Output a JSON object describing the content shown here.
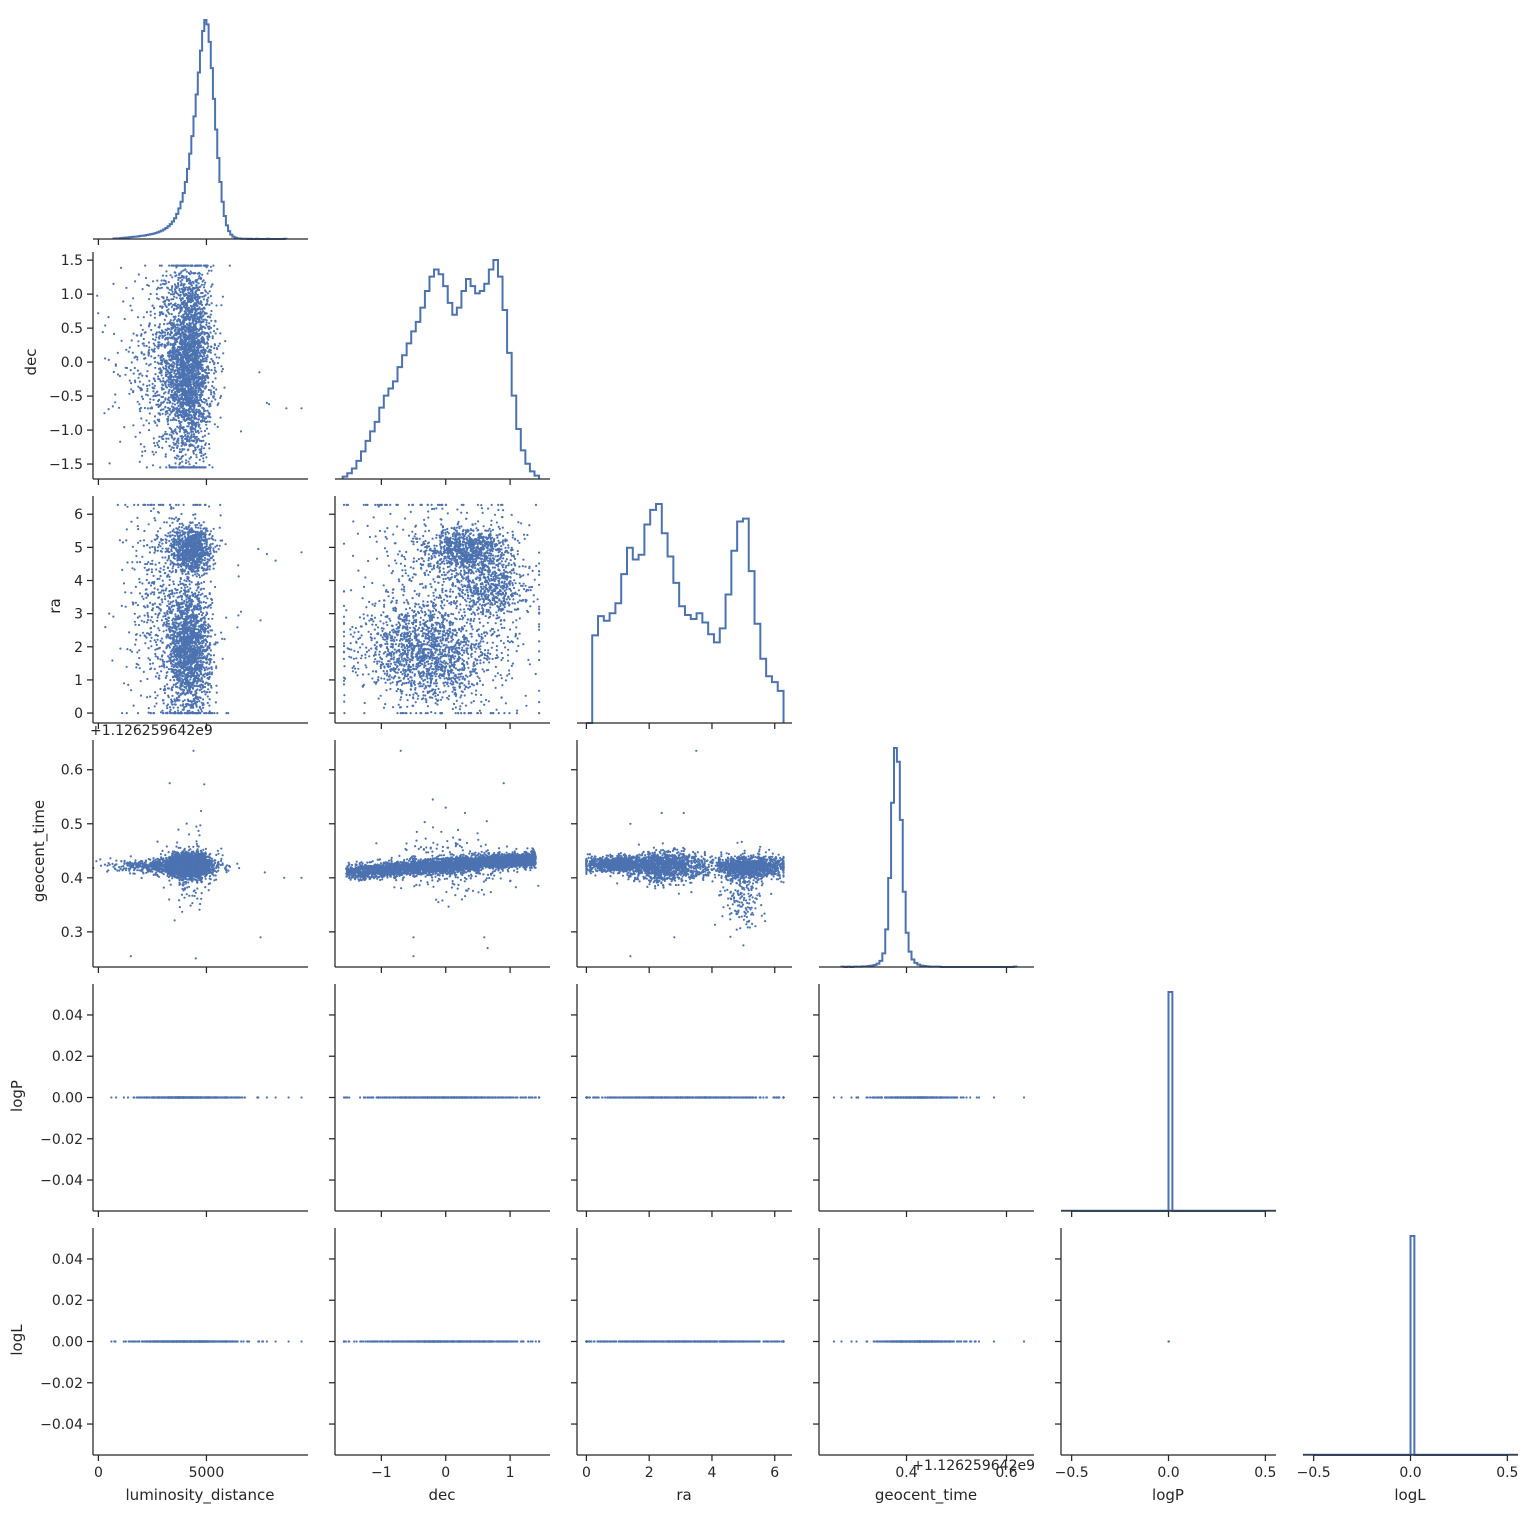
{
  "chart_data": {
    "type": "scatter",
    "title": "",
    "grid": false,
    "color": "#4c72b0",
    "axis_color": "#262626",
    "variables": [
      "luminosity_distance",
      "dec",
      "ra",
      "geocent_time",
      "logP",
      "logL"
    ],
    "axis_labels": [
      "luminosity_distance",
      "dec",
      "ra",
      "geocent_time",
      "logP",
      "logL"
    ],
    "offset_text": "+1.126259642e9",
    "x_axes": [
      {
        "range": [
          -250,
          9700
        ],
        "ticks": [
          0,
          5000
        ],
        "tick_labels": [
          "0",
          "5000"
        ]
      },
      {
        "range": [
          -1.72,
          1.62
        ],
        "ticks": [
          -1,
          0,
          1
        ],
        "tick_labels": [
          "−1",
          "0",
          "1"
        ]
      },
      {
        "range": [
          -0.3,
          6.55
        ],
        "ticks": [
          0,
          2,
          4,
          6
        ],
        "tick_labels": [
          "0",
          "2",
          "4",
          "6"
        ]
      },
      {
        "range": [
          0.225,
          0.655
        ],
        "ticks": [
          0.4,
          0.6
        ],
        "tick_labels": [
          "0.4",
          "0.6"
        ]
      },
      {
        "range": [
          -0.555,
          0.555
        ],
        "ticks": [
          -0.5,
          0.0,
          0.5
        ],
        "tick_labels": [
          "−0.5",
          "0.0",
          "0.5"
        ]
      },
      {
        "range": [
          -0.555,
          0.555
        ],
        "ticks": [
          -0.5,
          0.0,
          0.5
        ],
        "tick_labels": [
          "−0.5",
          "0.0",
          "0.5"
        ]
      }
    ],
    "y_axes": [
      null,
      {
        "range": [
          -1.72,
          1.62
        ],
        "ticks": [
          -1.5,
          -1.0,
          -0.5,
          0.0,
          0.5,
          1.0,
          1.5
        ],
        "tick_labels": [
          "−1.5",
          "−1.0",
          "−0.5",
          "0.0",
          "0.5",
          "1.0",
          "1.5"
        ]
      },
      {
        "range": [
          -0.3,
          6.55
        ],
        "ticks": [
          0,
          1,
          2,
          3,
          4,
          5,
          6
        ],
        "tick_labels": [
          "0",
          "1",
          "2",
          "3",
          "4",
          "5",
          "6"
        ]
      },
      {
        "range": [
          0.235,
          0.655
        ],
        "ticks": [
          0.3,
          0.4,
          0.5,
          0.6
        ],
        "tick_labels": [
          "0.3",
          "0.4",
          "0.5",
          "0.6"
        ]
      },
      {
        "range": [
          -0.055,
          0.055
        ],
        "ticks": [
          -0.04,
          -0.02,
          0.0,
          0.02,
          0.04
        ],
        "tick_labels": [
          "−0.04",
          "−0.02",
          "0.00",
          "0.02",
          "0.04"
        ]
      },
      {
        "range": [
          -0.055,
          0.055
        ],
        "ticks": [
          -0.04,
          -0.02,
          0.0,
          0.02,
          0.04
        ],
        "tick_labels": [
          "−0.04",
          "−0.02",
          "0.00",
          "0.02",
          "0.04"
        ]
      }
    ],
    "histograms": [
      {
        "variable": "luminosity_distance",
        "bin_edges": [
          700,
          8700
        ],
        "counts": [
          2,
          3,
          3,
          4,
          5,
          6,
          7,
          8,
          9,
          10,
          11,
          12,
          14,
          15,
          16,
          18,
          20,
          22,
          24,
          27,
          30,
          34,
          38,
          44,
          50,
          58,
          68,
          80,
          95,
          115,
          140,
          170,
          210,
          260,
          320,
          390,
          470,
          560,
          660,
          760,
          860,
          950,
          1000,
          980,
          900,
          780,
          640,
          500,
          370,
          260,
          170,
          105,
          62,
          36,
          20,
          11,
          6,
          3,
          2,
          1,
          1,
          1,
          0,
          1,
          0,
          0,
          1,
          0,
          0,
          0,
          0,
          1,
          0,
          0,
          0,
          0,
          0,
          0,
          0,
          1
        ]
      },
      {
        "variable": "dec",
        "bin_edges": [
          -1.6,
          1.45
        ],
        "counts": [
          5,
          12,
          22,
          38,
          58,
          80,
          100,
          120,
          150,
          175,
          190,
          205,
          235,
          260,
          285,
          310,
          330,
          360,
          395,
          425,
          440,
          430,
          405,
          370,
          345,
          360,
          395,
          420,
          405,
          390,
          395,
          410,
          440,
          460,
          425,
          355,
          265,
          175,
          105,
          60,
          32,
          16,
          7
        ]
      },
      {
        "variable": "ra",
        "bin_edges": [
          0,
          6.28
        ],
        "counts": [
          0,
          150,
          183,
          175,
          188,
          205,
          255,
          300,
          280,
          288,
          340,
          365,
          375,
          325,
          285,
          240,
          200,
          185,
          178,
          188,
          172,
          152,
          138,
          162,
          220,
          295,
          345,
          350,
          260,
          170,
          110,
          80,
          70,
          55
        ]
      },
      {
        "variable": "geocent_time",
        "bin_edges": [
          0.27,
          0.62
        ],
        "counts": [
          1,
          0,
          1,
          0,
          1,
          1,
          1,
          2,
          2,
          3,
          4,
          6,
          10,
          18,
          40,
          110,
          260,
          480,
          640,
          600,
          430,
          220,
          100,
          45,
          22,
          12,
          7,
          4,
          3,
          2,
          1,
          1,
          1,
          1,
          0,
          0,
          0,
          0,
          0,
          0,
          0,
          0,
          0,
          0,
          0,
          0,
          0,
          0,
          0,
          0,
          0,
          0,
          0,
          0,
          0,
          0,
          0,
          0,
          0,
          1
        ]
      },
      {
        "variable": "logP",
        "bin_edges": [
          -0.5,
          0.5
        ],
        "counts": [
          0,
          0,
          0,
          0,
          0,
          0,
          0,
          0,
          0,
          0,
          0,
          0,
          0,
          0,
          0,
          0,
          0,
          0,
          0,
          0,
          0,
          0,
          0,
          0,
          0,
          1,
          0,
          0,
          0,
          0,
          0,
          0,
          0,
          0,
          0,
          0,
          0,
          0,
          0,
          0,
          0,
          0,
          0,
          0,
          0,
          0,
          0,
          0,
          0,
          0
        ]
      },
      {
        "variable": "logL",
        "bin_edges": [
          -0.5,
          0.5
        ],
        "counts": [
          0,
          0,
          0,
          0,
          0,
          0,
          0,
          0,
          0,
          0,
          0,
          0,
          0,
          0,
          0,
          0,
          0,
          0,
          0,
          0,
          0,
          0,
          0,
          0,
          0,
          1,
          0,
          0,
          0,
          0,
          0,
          0,
          0,
          0,
          0,
          0,
          0,
          0,
          0,
          0,
          0,
          0,
          0,
          0,
          0,
          0,
          0,
          0,
          0,
          0
        ]
      }
    ],
    "scatter_panels": [
      {
        "x": "luminosity_distance",
        "y": "dec",
        "clusters": [
          {
            "n": 2600,
            "cx": 4200,
            "cy": 0.0,
            "sx": 520,
            "sy": 0.72
          },
          {
            "n": 650,
            "cx": 3100,
            "cy": -0.05,
            "sx": 1050,
            "sy": 0.62
          }
        ],
        "points": [
          [
            700,
            1.15
          ],
          [
            9400,
            -0.68
          ],
          [
            8700,
            -0.68
          ],
          [
            7450,
            -0.15
          ],
          [
            7800,
            -0.6
          ],
          [
            7900,
            -0.62
          ],
          [
            6600,
            -1.02
          ]
        ]
      },
      {
        "x": "luminosity_distance",
        "y": "ra",
        "clusters": [
          {
            "n": 1700,
            "cx": 4200,
            "cy": 1.9,
            "sx": 500,
            "sy": 0.95
          },
          {
            "n": 900,
            "cx": 4300,
            "cy": 4.95,
            "sx": 480,
            "sy": 0.35
          },
          {
            "n": 700,
            "cx": 3300,
            "cy": 3.2,
            "sx": 1000,
            "sy": 1.8
          }
        ],
        "points": [
          [
            8200,
            4.6
          ],
          [
            9400,
            4.85
          ],
          [
            7400,
            4.95
          ],
          [
            7800,
            4.8
          ],
          [
            500,
            3.0
          ],
          [
            7500,
            2.8
          ]
        ]
      },
      {
        "x": "luminosity_distance",
        "y": "geocent_time",
        "clusters": [
          {
            "n": 2600,
            "cx": 4200,
            "cy": 0.423,
            "sx": 480,
            "sy": 0.011
          },
          {
            "n": 700,
            "cx": 3200,
            "cy": 0.422,
            "sx": 1100,
            "sy": 0.006
          },
          {
            "n": 120,
            "cx": 4300,
            "cy": 0.41,
            "sx": 500,
            "sy": 0.04
          }
        ],
        "points": [
          [
            4400,
            0.635
          ],
          [
            3300,
            0.575
          ],
          [
            4900,
            0.573
          ],
          [
            1500,
            0.255
          ],
          [
            7500,
            0.29
          ],
          [
            8600,
            0.4
          ],
          [
            9400,
            0.4
          ],
          [
            7700,
            0.41
          ]
        ]
      },
      {
        "x": "dec",
        "y": "ra",
        "clusters": [
          {
            "n": 1400,
            "cx": -0.3,
            "cy": 1.8,
            "sx": 0.5,
            "sy": 0.7
          },
          {
            "n": 900,
            "cx": 0.35,
            "cy": 4.9,
            "sx": 0.32,
            "sy": 0.35
          },
          {
            "n": 500,
            "cx": 0.7,
            "cy": 3.7,
            "sx": 0.3,
            "sy": 0.45
          },
          {
            "n": 800,
            "cx": 0.0,
            "cy": 3.2,
            "sx": 0.75,
            "sy": 1.9
          }
        ],
        "points": []
      },
      {
        "x": "dec",
        "y": "geocent_time",
        "linear": {
          "n": 3600,
          "x0": -1.55,
          "x1": 1.4,
          "y0": 0.41,
          "y1": 0.435,
          "sx": 0.0,
          "sy": 0.007
        },
        "clusters": [
          {
            "n": 250,
            "cx": 0.2,
            "cy": 0.425,
            "sx": 0.45,
            "sy": 0.028
          }
        ],
        "points": [
          [
            -0.7,
            0.635
          ],
          [
            -0.45,
            0.485
          ],
          [
            -0.2,
            0.545
          ],
          [
            0.0,
            0.53
          ],
          [
            0.9,
            0.575
          ],
          [
            0.3,
            0.52
          ],
          [
            -0.5,
            0.29
          ],
          [
            -0.5,
            0.255
          ],
          [
            0.6,
            0.29
          ],
          [
            0.65,
            0.27
          ]
        ]
      },
      {
        "x": "ra",
        "y": "geocent_time",
        "clusters": [
          {
            "n": 1000,
            "cx": 0.9,
            "cy": 0.425,
            "sx": 0.5,
            "sy": 0.007
          },
          {
            "n": 1200,
            "cx": 2.5,
            "cy": 0.42,
            "sx": 0.6,
            "sy": 0.014
          },
          {
            "n": 1100,
            "cx": 5.2,
            "cy": 0.42,
            "sx": 0.6,
            "sy": 0.01
          },
          {
            "n": 200,
            "cx": 5.0,
            "cy": 0.375,
            "sx": 0.3,
            "sy": 0.035
          }
        ],
        "points": [
          [
            3.5,
            0.635
          ],
          [
            1.4,
            0.255
          ],
          [
            2.8,
            0.29
          ],
          [
            1.4,
            0.5
          ],
          [
            2.4,
            0.52
          ],
          [
            3.1,
            0.52
          ],
          [
            5.0,
            0.275
          ]
        ]
      },
      {
        "x": "luminosity_distance",
        "y": "logP",
        "strip": {
          "n": 600,
          "cx": 4100,
          "sx": 1100,
          "y": 0.0
        },
        "points": [
          [
            7400,
            0
          ],
          [
            7800,
            0
          ],
          [
            8200,
            0
          ],
          [
            8800,
            0
          ],
          [
            9400,
            0
          ],
          [
            600,
            0
          ],
          [
            6400,
            0
          ]
        ]
      },
      {
        "x": "dec",
        "y": "logP",
        "strip": {
          "n": 600,
          "cx": 0.0,
          "sx": 0.6,
          "y": 0.0
        },
        "points": [
          [
            -1.55,
            0
          ],
          [
            1.35,
            0
          ],
          [
            1.4,
            0
          ],
          [
            -1.5,
            0
          ]
        ]
      },
      {
        "x": "ra",
        "y": "logP",
        "strip": {
          "n": 600,
          "cx": 3.1,
          "sx": 1.7,
          "y": 0.0
        },
        "points": [
          [
            0.0,
            0
          ],
          [
            6.28,
            0
          ]
        ]
      },
      {
        "x": "geocent_time",
        "y": "logP",
        "strip": {
          "n": 400,
          "cx": 0.42,
          "sx": 0.04,
          "y": 0.0
        },
        "points": [
          [
            0.255,
            0
          ],
          [
            0.27,
            0
          ],
          [
            0.29,
            0
          ],
          [
            0.3,
            0
          ],
          [
            0.32,
            0
          ],
          [
            0.52,
            0
          ],
          [
            0.545,
            0
          ],
          [
            0.575,
            0
          ],
          [
            0.635,
            0
          ]
        ]
      },
      {
        "x": "luminosity_distance",
        "y": "logL",
        "strip": {
          "n": 600,
          "cx": 4100,
          "sx": 1100,
          "y": 0.0
        },
        "points": [
          [
            7400,
            0
          ],
          [
            7800,
            0
          ],
          [
            8200,
            0
          ],
          [
            8800,
            0
          ],
          [
            9400,
            0
          ],
          [
            600,
            0
          ],
          [
            6400,
            0
          ]
        ]
      },
      {
        "x": "dec",
        "y": "logL",
        "strip": {
          "n": 600,
          "cx": 0.0,
          "sx": 0.6,
          "y": 0.0
        },
        "points": [
          [
            -1.55,
            0
          ],
          [
            1.35,
            0
          ],
          [
            1.4,
            0
          ],
          [
            -1.5,
            0
          ]
        ]
      },
      {
        "x": "ra",
        "y": "logL",
        "strip": {
          "n": 600,
          "cx": 3.1,
          "sx": 1.7,
          "y": 0.0
        },
        "points": [
          [
            0.0,
            0
          ],
          [
            6.28,
            0
          ]
        ]
      },
      {
        "x": "geocent_time",
        "y": "logL",
        "strip": {
          "n": 400,
          "cx": 0.42,
          "sx": 0.04,
          "y": 0.0
        },
        "points": [
          [
            0.255,
            0
          ],
          [
            0.27,
            0
          ],
          [
            0.29,
            0
          ],
          [
            0.3,
            0
          ],
          [
            0.32,
            0
          ],
          [
            0.52,
            0
          ],
          [
            0.545,
            0
          ],
          [
            0.575,
            0
          ],
          [
            0.635,
            0
          ]
        ]
      },
      {
        "x": "logP",
        "y": "logL",
        "strip": {
          "n": 0,
          "cx": 0.0,
          "sx": 0.0,
          "y": 0.0
        },
        "points": [
          [
            0.0,
            0.0
          ],
          [
            0.002,
            0.0
          ]
        ]
      }
    ]
  }
}
